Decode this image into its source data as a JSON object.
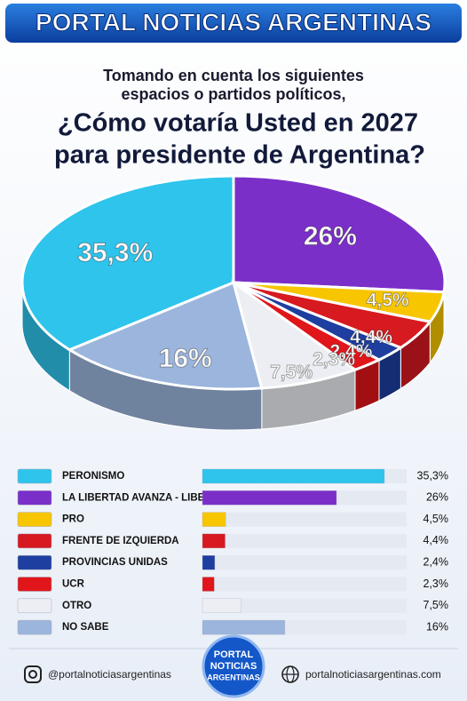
{
  "header": {
    "title": "PORTAL NOTICIAS ARGENTINAS"
  },
  "chart_data": {
    "type": "pie",
    "subtitle": [
      "Tomando en cuenta los siguientes",
      "espacios o partidos políticos,"
    ],
    "title": [
      "¿Cómo votaría Usted en 2027",
      "para presidente de Argentina?"
    ],
    "categories": [
      "PERONISMO",
      "LA LIBERTAD AVANZA - LIBERTARIOS",
      "PRO",
      "FRENTE DE IZQUIERDA",
      "PROVINCIAS UNIDAS",
      "UCR",
      "OTRO",
      "NO SABE"
    ],
    "values": [
      35.3,
      26,
      4.5,
      4.4,
      2.4,
      2.3,
      7.5,
      16
    ],
    "value_labels": [
      "35,3%",
      "26%",
      "4,5%",
      "4,4%",
      "2,4%",
      "2,3%",
      "7,5%",
      "16%"
    ],
    "colors": [
      "#2ec4ec",
      "#7b2fc9",
      "#f7c600",
      "#d71920",
      "#1e3fa0",
      "#e0161b",
      "#eceef3",
      "#9bb5dc"
    ]
  },
  "footer": {
    "instagram": "@portalnoticiasargentinas",
    "website": "portalnoticiasargentinas.com",
    "logo": [
      "PORTAL",
      "NOTICIAS",
      "ARGENTINAS"
    ]
  }
}
